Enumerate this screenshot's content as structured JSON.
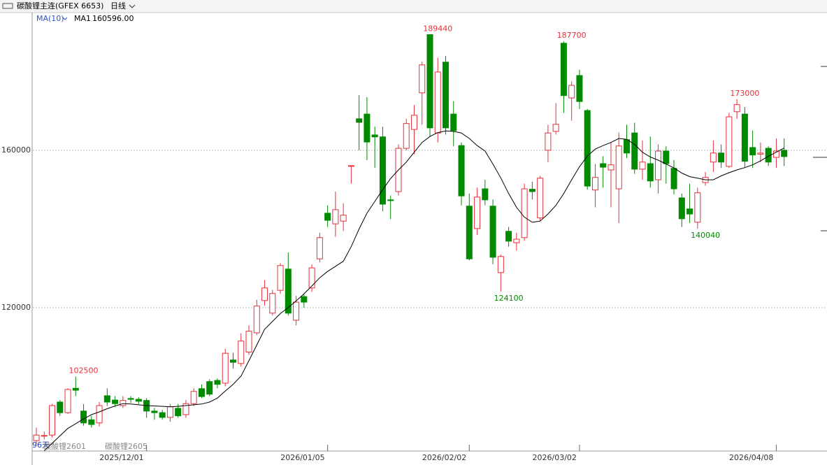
{
  "header": {
    "title": "碳酸锂主连(GFEX 6653)",
    "period": "日线",
    "indicator": "MA(10)",
    "ma_name": "MA1",
    "ma_value": {
      "value": 160596,
      "label": "160596.00"
    }
  },
  "footer": {
    "days": "96天",
    "contracts": [
      "碳酸锂2601",
      "碳酸锂2605"
    ]
  },
  "chart_data": {
    "type": "candlestick",
    "up_color": "#e8303a",
    "down_color": "#008a00",
    "ma_color": "#000000",
    "ylim": [
      83550,
      195000
    ],
    "yticks": [
      120000,
      160000
    ],
    "grid": true,
    "xticks": [
      {
        "value": 14,
        "label": "2025/12/01"
      },
      {
        "value": 37,
        "label": "2026/01/05"
      },
      {
        "value": 55,
        "label": "2026/02/02"
      },
      {
        "value": 69,
        "label": "2026/03/02"
      },
      {
        "value": 94,
        "label": "2026/04/08"
      }
    ],
    "candles": [
      {
        "open": 86200,
        "high": 89500,
        "low": 85500,
        "close": 87600
      },
      {
        "open": 87500,
        "high": 88500,
        "low": 86500,
        "close": 87500
      },
      {
        "open": 87600,
        "high": 95500,
        "low": 87000,
        "close": 95100
      },
      {
        "open": 96000,
        "high": 96500,
        "low": 92500,
        "close": 93300
      },
      {
        "open": 93300,
        "high": 99500,
        "low": 93000,
        "close": 99200
      },
      {
        "open": 99500,
        "high": 102500,
        "low": 97500,
        "close": 99000
      },
      {
        "open": 93700,
        "high": 95500,
        "low": 90000,
        "close": 90700
      },
      {
        "open": 91500,
        "high": 92500,
        "low": 89500,
        "close": 90300
      },
      {
        "open": 90700,
        "high": 96000,
        "low": 89800,
        "close": 95100
      },
      {
        "open": 97600,
        "high": 99500,
        "low": 95000,
        "close": 96000
      },
      {
        "open": 96500,
        "high": 97500,
        "low": 94800,
        "close": 95600
      },
      {
        "open": 95100,
        "high": 97500,
        "low": 94500,
        "close": 96400
      },
      {
        "open": 96900,
        "high": 97500,
        "low": 95800,
        "close": 96700
      },
      {
        "open": 96700,
        "high": 97200,
        "low": 95500,
        "close": 96200
      },
      {
        "open": 96400,
        "high": 97000,
        "low": 92000,
        "close": 93700
      },
      {
        "open": 93700,
        "high": 94500,
        "low": 91500,
        "close": 93300
      },
      {
        "open": 93300,
        "high": 94000,
        "low": 91500,
        "close": 92100
      },
      {
        "open": 92100,
        "high": 95500,
        "low": 91000,
        "close": 94800
      },
      {
        "open": 94400,
        "high": 95500,
        "low": 92000,
        "close": 92500
      },
      {
        "open": 92800,
        "high": 96500,
        "low": 92000,
        "close": 95600
      },
      {
        "open": 95600,
        "high": 99500,
        "low": 95000,
        "close": 98700
      },
      {
        "open": 99400,
        "high": 100500,
        "low": 97000,
        "close": 97400
      },
      {
        "open": 101200,
        "high": 101800,
        "low": 97500,
        "close": 98000
      },
      {
        "open": 101500,
        "high": 102000,
        "low": 99500,
        "close": 100500
      },
      {
        "open": 100800,
        "high": 109500,
        "low": 100000,
        "close": 108400
      },
      {
        "open": 106700,
        "high": 108500,
        "low": 104500,
        "close": 106100
      },
      {
        "open": 105800,
        "high": 113500,
        "low": 105000,
        "close": 111500
      },
      {
        "open": 108700,
        "high": 115500,
        "low": 108000,
        "close": 114000
      },
      {
        "open": 113600,
        "high": 122000,
        "low": 113000,
        "close": 120400
      },
      {
        "open": 121800,
        "high": 127000,
        "low": 120500,
        "close": 125000
      },
      {
        "open": 118600,
        "high": 124500,
        "low": 118000,
        "close": 123600
      },
      {
        "open": 124400,
        "high": 131300,
        "low": 123500,
        "close": 130700
      },
      {
        "open": 129800,
        "high": 134000,
        "low": 118000,
        "close": 118600
      },
      {
        "open": 116800,
        "high": 123000,
        "low": 115500,
        "close": 121400
      },
      {
        "open": 122800,
        "high": 123500,
        "low": 120000,
        "close": 121400
      },
      {
        "open": 125000,
        "high": 131000,
        "low": 124000,
        "close": 130100
      },
      {
        "open": 132400,
        "high": 139000,
        "low": 131500,
        "close": 137800
      },
      {
        "open": 144000,
        "high": 146000,
        "low": 140500,
        "close": 142200
      },
      {
        "open": 141300,
        "high": 149500,
        "low": 138000,
        "close": 144900
      },
      {
        "open": 142000,
        "high": 146500,
        "low": 139500,
        "close": 143500
      },
      {
        "open": 156100,
        "high": 156100,
        "low": 151500,
        "close": 156100
      },
      {
        "open": 168000,
        "high": 174000,
        "low": 160000,
        "close": 167100
      },
      {
        "open": 169200,
        "high": 173500,
        "low": 157500,
        "close": 162100
      },
      {
        "open": 163900,
        "high": 166000,
        "low": 155500,
        "close": 163400
      },
      {
        "open": 163400,
        "high": 166000,
        "low": 144500,
        "close": 146300
      },
      {
        "open": 147400,
        "high": 148500,
        "low": 142500,
        "close": 147200
      },
      {
        "open": 149500,
        "high": 161500,
        "low": 148500,
        "close": 160500
      },
      {
        "open": 160500,
        "high": 168000,
        "low": 160000,
        "close": 166800
      },
      {
        "open": 165300,
        "high": 171500,
        "low": 159000,
        "close": 168900
      },
      {
        "open": 174600,
        "high": 182500,
        "low": 166500,
        "close": 181700
      },
      {
        "open": 189400,
        "high": 189440,
        "low": 163500,
        "close": 165700
      },
      {
        "open": 164400,
        "high": 183500,
        "low": 162000,
        "close": 179900
      },
      {
        "open": 182400,
        "high": 184000,
        "low": 164000,
        "close": 165700
      },
      {
        "open": 169200,
        "high": 172500,
        "low": 161000,
        "close": 165000
      },
      {
        "open": 161200,
        "high": 162000,
        "low": 146000,
        "close": 148400
      },
      {
        "open": 145800,
        "high": 149000,
        "low": 132000,
        "close": 132400
      },
      {
        "open": 140100,
        "high": 150500,
        "low": 138500,
        "close": 148100
      },
      {
        "open": 150200,
        "high": 152500,
        "low": 146000,
        "close": 147400
      },
      {
        "open": 145800,
        "high": 147500,
        "low": 131000,
        "close": 132800
      },
      {
        "open": 128900,
        "high": 133500,
        "low": 124100,
        "close": 133000
      },
      {
        "open": 139400,
        "high": 140500,
        "low": 135500,
        "close": 136900
      },
      {
        "open": 136500,
        "high": 139000,
        "low": 134500,
        "close": 137400
      },
      {
        "open": 137800,
        "high": 151500,
        "low": 137000,
        "close": 150200
      },
      {
        "open": 150100,
        "high": 152000,
        "low": 147500,
        "close": 149500
      },
      {
        "open": 142800,
        "high": 153500,
        "low": 142000,
        "close": 152900
      },
      {
        "open": 160000,
        "high": 166500,
        "low": 157000,
        "close": 164400
      },
      {
        "open": 164800,
        "high": 172000,
        "low": 164000,
        "close": 166600
      },
      {
        "open": 187200,
        "high": 187700,
        "low": 169500,
        "close": 173900
      },
      {
        "open": 173300,
        "high": 177500,
        "low": 167500,
        "close": 176500
      },
      {
        "open": 179000,
        "high": 180500,
        "low": 170500,
        "close": 172400
      },
      {
        "open": 170100,
        "high": 170500,
        "low": 150000,
        "close": 150900
      },
      {
        "open": 149900,
        "high": 156500,
        "low": 145500,
        "close": 153100
      },
      {
        "open": 156600,
        "high": 158500,
        "low": 150500,
        "close": 155700
      },
      {
        "open": 155000,
        "high": 162000,
        "low": 145500,
        "close": 156300
      },
      {
        "open": 150200,
        "high": 164500,
        "low": 141500,
        "close": 161100
      },
      {
        "open": 162700,
        "high": 166500,
        "low": 158000,
        "close": 159300
      },
      {
        "open": 164400,
        "high": 167000,
        "low": 154000,
        "close": 155200
      },
      {
        "open": 155200,
        "high": 162500,
        "low": 152500,
        "close": 157000
      },
      {
        "open": 156600,
        "high": 163500,
        "low": 150500,
        "close": 152200
      },
      {
        "open": 152500,
        "high": 161500,
        "low": 149000,
        "close": 159800
      },
      {
        "open": 159800,
        "high": 161000,
        "low": 151500,
        "close": 156600
      },
      {
        "open": 155400,
        "high": 157500,
        "low": 148800,
        "close": 150200
      },
      {
        "open": 147900,
        "high": 149000,
        "low": 140500,
        "close": 142600
      },
      {
        "open": 145100,
        "high": 151500,
        "low": 141500,
        "close": 143800
      },
      {
        "open": 141700,
        "high": 150500,
        "low": 140040,
        "close": 149200
      },
      {
        "open": 151800,
        "high": 154500,
        "low": 151000,
        "close": 153100
      },
      {
        "open": 157000,
        "high": 162500,
        "low": 154500,
        "close": 159300
      },
      {
        "open": 159300,
        "high": 161500,
        "low": 155500,
        "close": 157000
      },
      {
        "open": 155900,
        "high": 169500,
        "low": 155500,
        "close": 168500
      },
      {
        "open": 169800,
        "high": 173000,
        "low": 168000,
        "close": 171600
      },
      {
        "open": 169200,
        "high": 171000,
        "low": 155500,
        "close": 157200
      },
      {
        "open": 160700,
        "high": 165000,
        "low": 155500,
        "close": 158800
      },
      {
        "open": 159000,
        "high": 162000,
        "low": 157000,
        "close": 159300
      },
      {
        "open": 160500,
        "high": 161000,
        "low": 156000,
        "close": 157000
      },
      {
        "open": 158200,
        "high": 163000,
        "low": 155500,
        "close": 159800
      },
      {
        "open": 160000,
        "high": 163000,
        "low": 156000,
        "close": 158400
      }
    ],
    "ma": [
      null,
      83600,
      85500,
      87400,
      89300,
      90500,
      91700,
      92800,
      93500,
      94300,
      95000,
      95600,
      95500,
      95300,
      95100,
      95000,
      94900,
      94800,
      94900,
      95100,
      95300,
      95500,
      96000,
      97000,
      98800,
      100500,
      102600,
      106500,
      110500,
      114500,
      116500,
      118500,
      120000,
      121700,
      123500,
      125500,
      127600,
      129200,
      130500,
      131800,
      135500,
      140000,
      144000,
      147000,
      150000,
      152800,
      155000,
      157000,
      159500,
      162000,
      163500,
      164500,
      164900,
      164800,
      164400,
      163000,
      161200,
      159800,
      156500,
      153000,
      149000,
      145500,
      143000,
      141700,
      142000,
      143800,
      146000,
      149000,
      152500,
      155800,
      158500,
      160300,
      161200,
      162000,
      163000,
      162800,
      161500,
      159500,
      158300,
      157500,
      156500,
      155500,
      154200,
      153300,
      152900,
      152500,
      152500,
      153500,
      154300,
      155000,
      155600,
      156300,
      157300,
      158500,
      159500,
      160596
    ],
    "annotations": [
      {
        "index": 6,
        "value": 102500,
        "kind": "high"
      },
      {
        "index": 51,
        "value": 189440,
        "kind": "high"
      },
      {
        "index": 68,
        "value": 187700,
        "kind": "high"
      },
      {
        "index": 90,
        "value": 173000,
        "kind": "high"
      },
      {
        "index": 60,
        "value": 124100,
        "kind": "low"
      },
      {
        "index": 85,
        "value": 140040,
        "kind": "low"
      }
    ]
  }
}
